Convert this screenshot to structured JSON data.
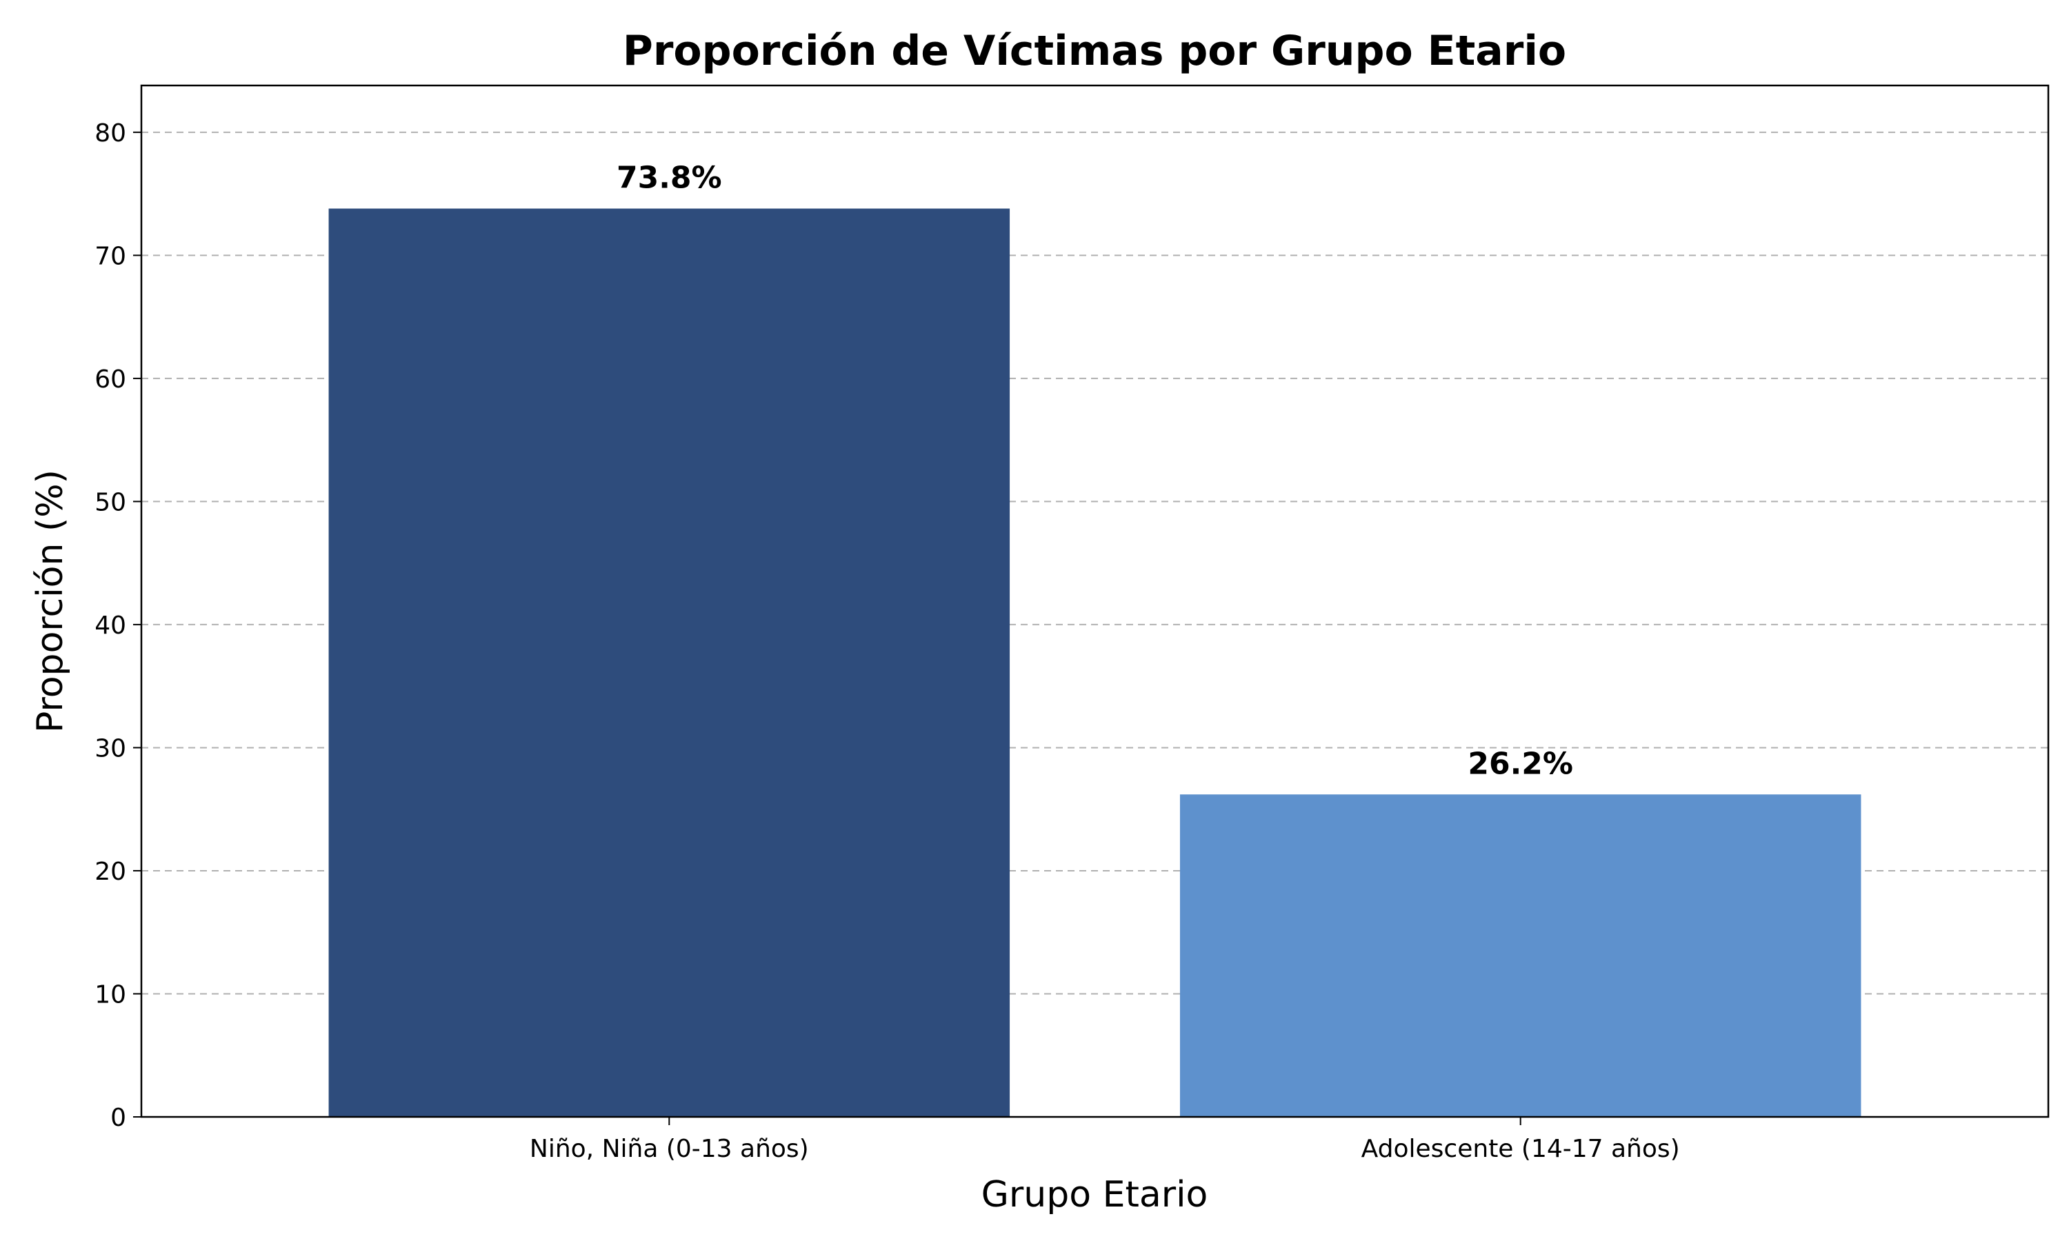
{
  "chart_data": {
    "type": "bar",
    "title": "Proporción de Víctimas por Grupo Etario",
    "xlabel": "Grupo Etario",
    "ylabel": "Proporción (%)",
    "categories": [
      "Niño, Niña (0-13 años)",
      "Adolescente (14-17 años)"
    ],
    "values": [
      73.8,
      26.2
    ],
    "data_labels": [
      "73.8%",
      "26.2%"
    ],
    "colors": [
      "#2e4c7c",
      "#5e91cd"
    ],
    "ylim": [
      0,
      83.8
    ],
    "yticks": [
      0,
      10,
      20,
      30,
      40,
      50,
      60,
      70,
      80
    ],
    "grid": "y-dashed",
    "legend": "none"
  }
}
